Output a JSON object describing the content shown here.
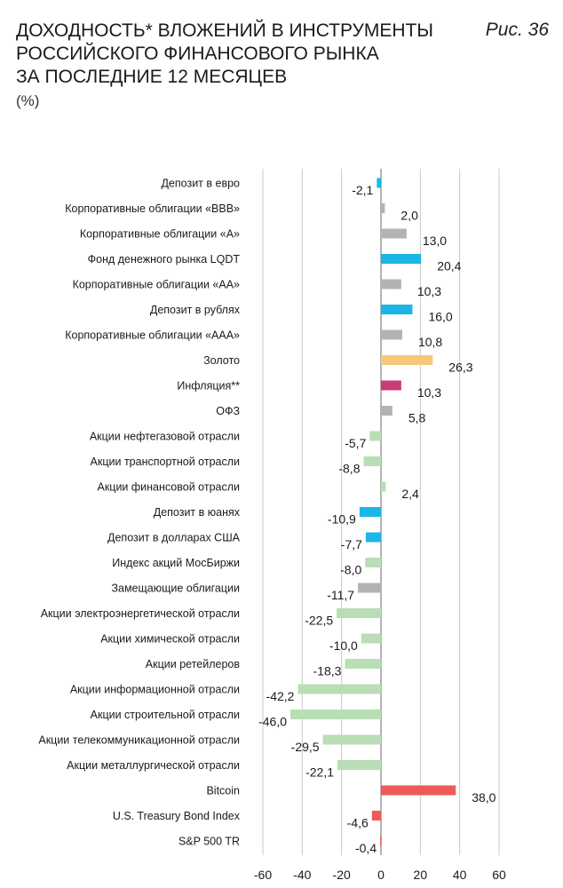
{
  "header": {
    "title_lines": [
      "Доходность* вложений в инструменты",
      "российского финансового рынка",
      "за последние 12 месяцев"
    ],
    "figure_label": "Рис. 36",
    "unit": "(%)"
  },
  "colors": {
    "blue": "#19b6e6",
    "gray": "#b3b3b3",
    "gold": "#f5c878",
    "magenta": "#c83c78",
    "green": "#b9ddb5",
    "red": "#ee5a55",
    "grid": "#c8c8c8"
  },
  "chart_data": {
    "type": "bar",
    "orientation": "horizontal",
    "xlim": [
      -60,
      60
    ],
    "xticks": [
      "-60",
      "-40",
      "-20",
      "0",
      "20",
      "40",
      "60"
    ],
    "grid": true,
    "categories": [
      "Депозит в евро",
      "Корпоративные облигации «ВВВ»",
      "Корпоративные облигации «А»",
      "Фонд денежного рынка LQDT",
      "Корпоративные облигации «АА»",
      "Депозит в рублях",
      "Корпоративные облигации «ААА»",
      "Золото",
      "Инфляция**",
      "ОФЗ",
      "Акции нефтегазовой отрасли",
      "Акции транспортной отрасли",
      "Акции финансовой отрасли",
      "Депозит в юанях",
      "Депозит в долларах США",
      "Индекс акций МосБиржи",
      "Замещающие облигации",
      "Акции электроэнергетической отрасли",
      "Акции химической отрасли",
      "Акции ретейлеров",
      "Акции информационной отрасли",
      "Акции строительной отрасли",
      "Акции телекоммуникационной отрасли",
      "Акции металлургической отрасли",
      "Bitcoin",
      "U.S. Treasury Bond Index",
      "S&P 500 TR"
    ],
    "values": [
      -2.1,
      2.0,
      13.0,
      20.4,
      10.3,
      16.0,
      10.8,
      26.3,
      10.3,
      5.8,
      -5.7,
      -8.8,
      2.4,
      -10.9,
      -7.7,
      -8.0,
      -11.7,
      -22.5,
      -10.0,
      -18.3,
      -42.2,
      -46.0,
      -29.5,
      -22.1,
      38.0,
      -4.6,
      -0.4
    ],
    "labels": [
      "-2,1",
      "2,0",
      "13,0",
      "20,4",
      "10,3",
      "16,0",
      "10,8",
      "26,3",
      "10,3",
      "5,8",
      "-5,7",
      "-8,8",
      "2,4",
      "-10,9",
      "-7,7",
      "-8,0",
      "-11,7",
      "-22,5",
      "-10,0",
      "-18,3",
      "-42,2",
      "-46,0",
      "-29,5",
      "-22,1",
      "38,0",
      "-4,6",
      "-0,4"
    ],
    "bar_colors": [
      "blue",
      "gray",
      "gray",
      "blue",
      "gray",
      "blue",
      "gray",
      "gold",
      "magenta",
      "gray",
      "green",
      "green",
      "green",
      "blue",
      "blue",
      "green",
      "gray",
      "green",
      "green",
      "green",
      "green",
      "green",
      "green",
      "green",
      "red",
      "red",
      "red"
    ]
  }
}
